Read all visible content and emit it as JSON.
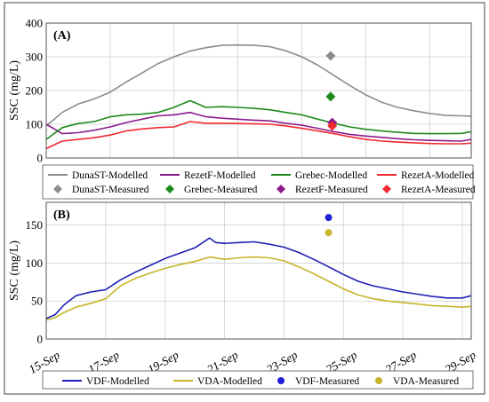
{
  "chart_data": [
    {
      "panel": "(A)",
      "type": "line",
      "ylabel": "SSC (mg/L)",
      "ylim": [
        0,
        400
      ],
      "yticks": [
        0,
        100,
        200,
        300,
        400
      ],
      "grid": true,
      "legend_position": "bottom",
      "series": [
        {
          "name": "DunaST-Modelled",
          "color": "#8c8c8c",
          "kind": "line",
          "points": [
            [
              0,
              95
            ],
            [
              0.5,
              135
            ],
            [
              1,
              160
            ],
            [
              1.5,
              175
            ],
            [
              2,
              195
            ],
            [
              2.5,
              225
            ],
            [
              3,
              252
            ],
            [
              3.5,
              280
            ],
            [
              4,
              300
            ],
            [
              4.5,
              317
            ],
            [
              5,
              327
            ],
            [
              5.5,
              334
            ],
            [
              6,
              335
            ],
            [
              6.5,
              334
            ],
            [
              7,
              330
            ],
            [
              7.5,
              318
            ],
            [
              8,
              300
            ],
            [
              8.5,
              275
            ],
            [
              9,
              245
            ],
            [
              9.5,
              215
            ],
            [
              10,
              187
            ],
            [
              10.5,
              165
            ],
            [
              11,
              150
            ],
            [
              11.5,
              140
            ],
            [
              12,
              132
            ],
            [
              12.5,
              126
            ],
            [
              13,
              125
            ],
            [
              13.3,
              124
            ]
          ]
        },
        {
          "name": "RezetF-Modelled",
          "color": "#8b1a8b",
          "kind": "line",
          "points": [
            [
              0,
              100
            ],
            [
              0.5,
              72
            ],
            [
              1,
              75
            ],
            [
              1.5,
              82
            ],
            [
              2,
              92
            ],
            [
              2.5,
              105
            ],
            [
              3,
              115
            ],
            [
              3.5,
              125
            ],
            [
              4,
              128
            ],
            [
              4.5,
              135
            ],
            [
              5,
              122
            ],
            [
              5.5,
              118
            ],
            [
              6,
              115
            ],
            [
              6.5,
              112
            ],
            [
              7,
              110
            ],
            [
              7.5,
              103
            ],
            [
              8,
              97
            ],
            [
              8.5,
              88
            ],
            [
              9,
              78
            ],
            [
              9.5,
              70
            ],
            [
              10,
              65
            ],
            [
              10.5,
              61
            ],
            [
              11,
              57
            ],
            [
              11.5,
              54
            ],
            [
              12,
              52
            ],
            [
              12.5,
              51
            ],
            [
              13,
              50
            ],
            [
              13.3,
              55
            ]
          ]
        },
        {
          "name": "Grebec-Modelled",
          "color": "#1e8a1e",
          "kind": "line",
          "points": [
            [
              0,
              55
            ],
            [
              0.5,
              90
            ],
            [
              1,
              102
            ],
            [
              1.5,
              108
            ],
            [
              2,
              122
            ],
            [
              2.5,
              128
            ],
            [
              3,
              130
            ],
            [
              3.5,
              135
            ],
            [
              4,
              150
            ],
            [
              4.5,
              170
            ],
            [
              5,
              150
            ],
            [
              5.5,
              152
            ],
            [
              6,
              150
            ],
            [
              6.5,
              147
            ],
            [
              7,
              143
            ],
            [
              7.5,
              135
            ],
            [
              8,
              128
            ],
            [
              8.5,
              115
            ],
            [
              9,
              103
            ],
            [
              9.5,
              92
            ],
            [
              10,
              85
            ],
            [
              10.5,
              80
            ],
            [
              11,
              76
            ],
            [
              11.5,
              73
            ],
            [
              12,
              72
            ],
            [
              12.5,
              72
            ],
            [
              13,
              73
            ],
            [
              13.3,
              78
            ]
          ]
        },
        {
          "name": "RezetA-Modelled",
          "color": "#f0282f",
          "kind": "line",
          "points": [
            [
              0,
              28
            ],
            [
              0.5,
              50
            ],
            [
              1,
              55
            ],
            [
              1.5,
              60
            ],
            [
              2,
              68
            ],
            [
              2.5,
              80
            ],
            [
              3,
              86
            ],
            [
              3.5,
              90
            ],
            [
              4,
              92
            ],
            [
              4.5,
              108
            ],
            [
              5,
              103
            ],
            [
              5.5,
              103
            ],
            [
              6,
              102
            ],
            [
              6.5,
              101
            ],
            [
              7,
              100
            ],
            [
              7.5,
              95
            ],
            [
              8,
              88
            ],
            [
              8.5,
              80
            ],
            [
              9,
              72
            ],
            [
              9.5,
              63
            ],
            [
              10,
              55
            ],
            [
              10.5,
              50
            ],
            [
              11,
              47
            ],
            [
              11.5,
              45
            ],
            [
              12,
              43
            ],
            [
              12.5,
              42
            ],
            [
              13,
              42
            ],
            [
              13.3,
              44
            ]
          ]
        },
        {
          "name": "DunaST-Measured",
          "color": "#8c8c8c",
          "kind": "diamond",
          "points": [
            [
              8.9,
              303
            ]
          ]
        },
        {
          "name": "Grebec-Measured",
          "color": "#1e8a1e",
          "kind": "diamond",
          "points": [
            [
              8.9,
              182
            ]
          ]
        },
        {
          "name": "RezetF-Measured",
          "color": "#8b1a8b",
          "kind": "diamond",
          "points": [
            [
              8.95,
              105
            ]
          ]
        },
        {
          "name": "RezetA-Measured",
          "color": "#f0282f",
          "kind": "diamond",
          "points": [
            [
              8.95,
              95
            ]
          ]
        }
      ]
    },
    {
      "panel": "(B)",
      "type": "line",
      "ylabel": "SSC (mg/L)",
      "ylim": [
        0,
        180
      ],
      "yticks": [
        0,
        50,
        100,
        150
      ],
      "grid": true,
      "legend_position": "bottom",
      "x_tick_labels": [
        "15-Sep",
        "17-Sep",
        "19-Sep",
        "21-Sep",
        "23-Sep",
        "25-Sep",
        "27-Sep",
        "29-Sep"
      ],
      "x_tick_positions": [
        0,
        2,
        4,
        6,
        8,
        10,
        12,
        14
      ],
      "series": [
        {
          "name": "VDF-Modelled",
          "color": "#1f1fb4",
          "kind": "line",
          "points": [
            [
              0,
              27
            ],
            [
              0.3,
              32
            ],
            [
              0.6,
              45
            ],
            [
              1,
              57
            ],
            [
              1.5,
              62
            ],
            [
              2,
              65
            ],
            [
              2.5,
              78
            ],
            [
              3,
              88
            ],
            [
              3.5,
              97
            ],
            [
              4,
              106
            ],
            [
              4.5,
              113
            ],
            [
              5,
              120
            ],
            [
              5.5,
              133
            ],
            [
              5.7,
              127
            ],
            [
              6,
              126
            ],
            [
              6.5,
              127
            ],
            [
              7,
              128
            ],
            [
              7.5,
              125
            ],
            [
              8,
              121
            ],
            [
              8.5,
              114
            ],
            [
              9,
              105
            ],
            [
              9.5,
              95
            ],
            [
              10,
              85
            ],
            [
              10.5,
              76
            ],
            [
              11,
              70
            ],
            [
              11.5,
              66
            ],
            [
              12,
              62
            ],
            [
              12.5,
              59
            ],
            [
              13,
              56
            ],
            [
              13.5,
              54
            ],
            [
              14,
              54
            ],
            [
              14.3,
              57
            ]
          ]
        },
        {
          "name": "VDA-Modelled",
          "color": "#c6b42a",
          "kind": "line",
          "points": [
            [
              0,
              25
            ],
            [
              0.3,
              28
            ],
            [
              0.6,
              35
            ],
            [
              1,
              42
            ],
            [
              1.5,
              47
            ],
            [
              2,
              53
            ],
            [
              2.5,
              70
            ],
            [
              3,
              80
            ],
            [
              3.5,
              87
            ],
            [
              4,
              93
            ],
            [
              4.5,
              98
            ],
            [
              5,
              102
            ],
            [
              5.5,
              108
            ],
            [
              6,
              105
            ],
            [
              6.5,
              107
            ],
            [
              7,
              108
            ],
            [
              7.5,
              107
            ],
            [
              8,
              103
            ],
            [
              8.5,
              95
            ],
            [
              9,
              86
            ],
            [
              9.5,
              76
            ],
            [
              10,
              66
            ],
            [
              10.5,
              58
            ],
            [
              11,
              53
            ],
            [
              11.5,
              50
            ],
            [
              12,
              48
            ],
            [
              12.5,
              46
            ],
            [
              13,
              44
            ],
            [
              13.5,
              43
            ],
            [
              14,
              42
            ],
            [
              14.3,
              43
            ]
          ]
        },
        {
          "name": "VDF-Measured",
          "color": "#1f1fd8",
          "kind": "dot",
          "points": [
            [
              9.5,
              160
            ]
          ]
        },
        {
          "name": "VDA-Measured",
          "color": "#c6b42a",
          "kind": "dot",
          "points": [
            [
              9.5,
              140
            ]
          ]
        }
      ]
    }
  ]
}
